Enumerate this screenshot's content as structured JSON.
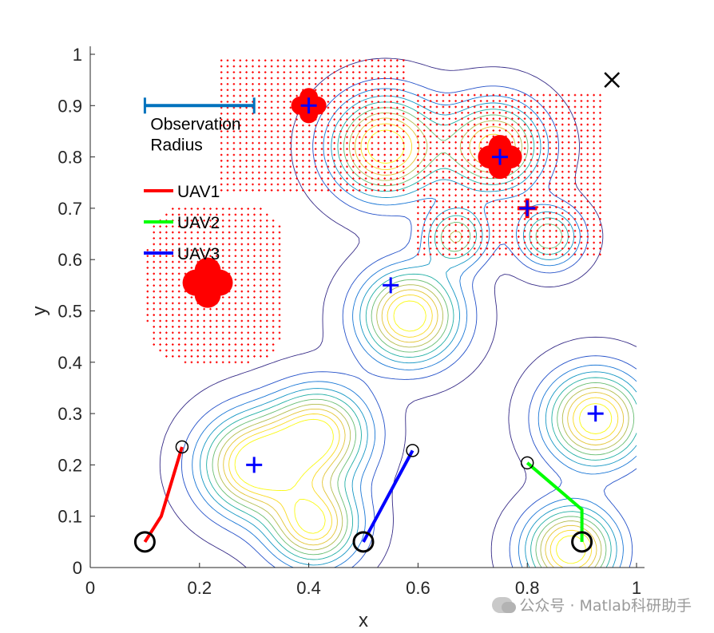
{
  "chart_data": {
    "type": "contour",
    "xlabel": "x",
    "ylabel": "y",
    "xlim": [
      0,
      1
    ],
    "ylim": [
      0,
      1
    ],
    "xticks": [
      0,
      0.2,
      0.4,
      0.6,
      0.8,
      1
    ],
    "yticks": [
      0,
      0.1,
      0.2,
      0.3,
      0.4,
      0.5,
      0.6,
      0.7,
      0.8,
      0.9,
      1
    ],
    "targets": [
      {
        "x": 0.55,
        "y": 0.55
      },
      {
        "x": 0.4,
        "y": 0.9
      },
      {
        "x": 0.75,
        "y": 0.8
      },
      {
        "x": 0.8,
        "y": 0.7
      },
      {
        "x": 0.3,
        "y": 0.2
      },
      {
        "x": 0.925,
        "y": 0.3
      }
    ],
    "peaks": [
      {
        "x": 0.3,
        "y": 0.2,
        "a": 1.0,
        "s": 0.065
      },
      {
        "x": 0.42,
        "y": 0.26,
        "a": 0.9,
        "s": 0.06
      },
      {
        "x": 0.41,
        "y": 0.085,
        "a": 0.9,
        "s": 0.055
      },
      {
        "x": 0.585,
        "y": 0.49,
        "a": 1.0,
        "s": 0.06
      },
      {
        "x": 0.54,
        "y": 0.82,
        "a": 1.0,
        "s": 0.065
      },
      {
        "x": 0.74,
        "y": 0.82,
        "a": 0.85,
        "s": 0.06
      },
      {
        "x": 0.67,
        "y": 0.645,
        "a": 0.6,
        "s": 0.04
      },
      {
        "x": 0.84,
        "y": 0.645,
        "a": 0.6,
        "s": 0.04
      },
      {
        "x": 0.925,
        "y": 0.29,
        "a": 1.0,
        "s": 0.06
      },
      {
        "x": 0.88,
        "y": 0.035,
        "a": 1.0,
        "s": 0.055
      }
    ],
    "uavs": [
      {
        "name": "UAV1",
        "color": "#ff0000",
        "start": [
          0.1,
          0.05
        ],
        "path": [
          [
            0.1,
            0.05
          ],
          [
            0.13,
            0.1
          ],
          [
            0.168,
            0.235
          ]
        ]
      },
      {
        "name": "UAV2",
        "color": "#00ff00",
        "start": [
          0.9,
          0.05
        ],
        "path": [
          [
            0.9,
            0.05
          ],
          [
            0.9,
            0.113
          ],
          [
            0.8,
            0.204
          ]
        ]
      },
      {
        "name": "UAV3",
        "color": "#0000ff",
        "start": [
          0.5,
          0.05
        ],
        "path": [
          [
            0.5,
            0.05
          ],
          [
            0.59,
            0.228
          ]
        ]
      }
    ],
    "observed_regions": [
      {
        "x0": 0.24,
        "x1": 0.575,
        "y0": 0.735,
        "y1": 0.99
      },
      {
        "x0": 0.6,
        "x1": 0.935,
        "y0": 0.61,
        "y1": 0.93
      },
      {
        "x0": 0.105,
        "y0": 0.4,
        "x1": 0.355,
        "y1": 0.705
      }
    ],
    "detected_markers": [
      {
        "x": 0.215,
        "y": 0.555,
        "r": 0.04
      },
      {
        "x": 0.4,
        "y": 0.9,
        "r": 0.028
      },
      {
        "x": 0.75,
        "y": 0.8,
        "r": 0.035
      },
      {
        "x": 0.8,
        "y": 0.7,
        "r": 0.018
      }
    ],
    "goal_marker": {
      "x": 0.955,
      "y": 0.95
    },
    "observation_radius": {
      "label_line1": "Observation",
      "label_line2": "Radius",
      "x0": 0.1,
      "x1": 0.3,
      "y": 0.9
    },
    "legend": [
      "UAV1",
      "UAV2",
      "UAV3"
    ]
  },
  "watermark": "公众号 · Matlab科研助手",
  "colors": {
    "axis": "#262626",
    "target_plus": "#0000ff",
    "observed_dots": "#ff0000",
    "radius_bar": "#0072bd"
  }
}
